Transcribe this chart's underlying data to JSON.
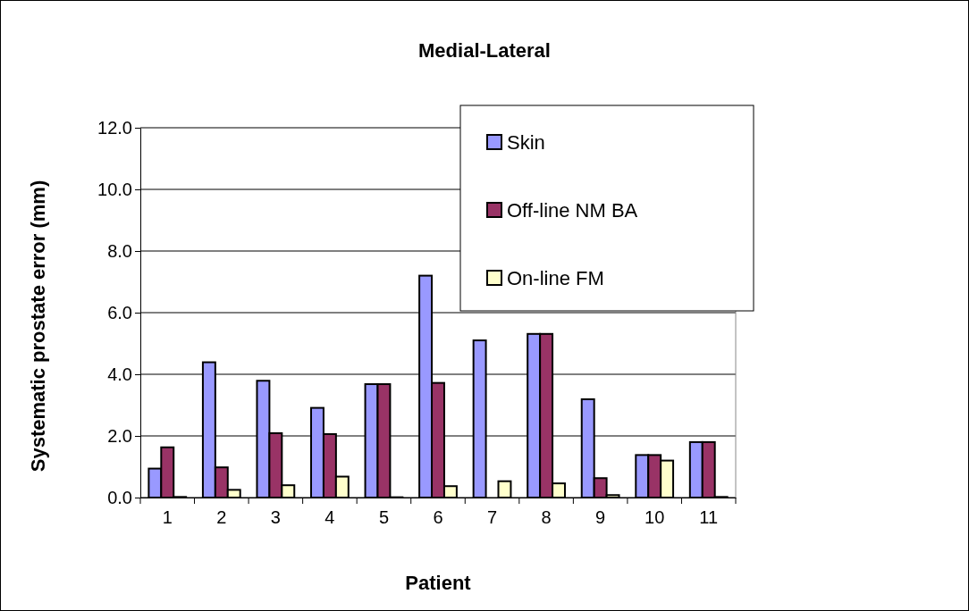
{
  "chart_data": {
    "type": "bar",
    "title": "Medial-Lateral",
    "xlabel": "Patient",
    "ylabel": "Systematic prostate error (mm)",
    "categories": [
      "1",
      "2",
      "3",
      "4",
      "5",
      "6",
      "7",
      "8",
      "9",
      "10",
      "11"
    ],
    "series": [
      {
        "name": "Skin",
        "color": "#9999ff",
        "values": [
          0.94,
          4.39,
          3.79,
          2.91,
          3.68,
          7.2,
          5.1,
          5.31,
          3.19,
          1.38,
          1.8
        ]
      },
      {
        "name": "Off-line NM BA",
        "color": "#993366",
        "values": [
          1.63,
          0.98,
          2.09,
          2.06,
          3.68,
          3.72,
          0,
          5.31,
          0.63,
          1.38,
          1.8
        ]
      },
      {
        "name": "On-line FM",
        "color": "#ffffcc",
        "values": [
          0.02,
          0.25,
          0.4,
          0.68,
          0.01,
          0.37,
          0.53,
          0.46,
          0.08,
          1.2,
          0.02
        ]
      }
    ],
    "ylim": [
      0,
      12
    ],
    "yticks": [
      {
        "value": 0,
        "label": "0.0"
      },
      {
        "value": 2,
        "label": "2.0"
      },
      {
        "value": 4,
        "label": "4.0"
      },
      {
        "value": 6,
        "label": "6.0"
      },
      {
        "value": 8,
        "label": "8.0"
      },
      {
        "value": 10,
        "label": "10.0"
      },
      {
        "value": 12,
        "label": "12.0"
      }
    ],
    "grid": "y",
    "legend": "top right"
  }
}
